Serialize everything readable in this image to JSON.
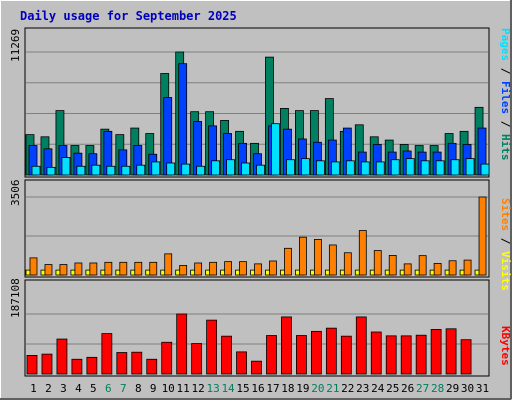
{
  "title": "Daily usage for September 2025",
  "colors": {
    "background": "#c0c0c0",
    "title": "#0000c0",
    "hits": "#008060",
    "files": "#0040ff",
    "pages": "#00e0ff",
    "visits": "#ffff00",
    "sites": "#ff8000",
    "kbytes": "#ff0000",
    "weekend_label": "#00805c"
  },
  "chart_data": [
    {
      "type": "bar",
      "panel": "hits-files-pages",
      "categories": [
        "1",
        "2",
        "3",
        "4",
        "5",
        "6",
        "7",
        "8",
        "9",
        "10",
        "11",
        "12",
        "13",
        "14",
        "15",
        "16",
        "17",
        "18",
        "19",
        "20",
        "21",
        "22",
        "23",
        "24",
        "25",
        "26",
        "27",
        "28",
        "29",
        "30",
        "31"
      ],
      "weekend_days": [
        "6",
        "7",
        "13",
        "14",
        "20",
        "21",
        "27",
        "28"
      ],
      "ymax_label": "11269",
      "ymax": 11269,
      "right_label_parts": [
        {
          "text": "Pages",
          "color_key": "pages"
        },
        {
          "text": " / ",
          "color_key": "divider"
        },
        {
          "text": "Files",
          "color_key": "files"
        },
        {
          "text": " / ",
          "color_key": "divider"
        },
        {
          "text": "Hits",
          "color_key": "hits"
        }
      ],
      "series": [
        {
          "key": "hits",
          "values": [
            3700,
            3500,
            5900,
            2700,
            2700,
            4200,
            3700,
            4300,
            3800,
            9300,
            11269,
            5800,
            5800,
            5000,
            4000,
            2900,
            10800,
            6100,
            5900,
            5900,
            7000,
            4000,
            4600,
            3500,
            3200,
            2800,
            2700,
            2700,
            3800,
            4000,
            6200
          ]
        },
        {
          "key": "files",
          "values": [
            2700,
            2400,
            2700,
            2000,
            1950,
            4000,
            2300,
            2700,
            1900,
            7100,
            10200,
            4900,
            4500,
            3800,
            2900,
            1950,
            4500,
            4200,
            3300,
            3000,
            3200,
            4300,
            2100,
            2800,
            2100,
            2200,
            2100,
            2100,
            2900,
            2800,
            4300
          ]
        },
        {
          "key": "pages",
          "values": [
            800,
            700,
            1600,
            800,
            900,
            800,
            800,
            900,
            1200,
            1100,
            1000,
            800,
            1300,
            1400,
            1100,
            900,
            4700,
            1400,
            1500,
            1300,
            1200,
            1300,
            1200,
            1200,
            1400,
            1500,
            1300,
            1300,
            1400,
            1500,
            1000
          ]
        }
      ]
    },
    {
      "type": "bar",
      "panel": "sites-visits",
      "categories": [
        "1",
        "2",
        "3",
        "4",
        "5",
        "6",
        "7",
        "8",
        "9",
        "10",
        "11",
        "12",
        "13",
        "14",
        "15",
        "16",
        "17",
        "18",
        "19",
        "20",
        "21",
        "22",
        "23",
        "24",
        "25",
        "26",
        "27",
        "28",
        "29",
        "30",
        "31"
      ],
      "ymax_label": "3506",
      "ymax": 3506,
      "right_label_parts": [
        {
          "text": "Sites",
          "color_key": "sites"
        },
        {
          "text": " / ",
          "color_key": "divider"
        },
        {
          "text": "Visits",
          "color_key": "visits"
        }
      ],
      "series": [
        {
          "key": "sites",
          "values": [
            770,
            470,
            470,
            540,
            540,
            570,
            570,
            570,
            570,
            950,
            430,
            540,
            570,
            600,
            600,
            500,
            630,
            1200,
            1700,
            1600,
            1350,
            1000,
            2000,
            1100,
            880,
            500,
            870,
            520,
            640,
            670,
            3506
          ]
        },
        {
          "key": "visits",
          "values": [
            220,
            220,
            220,
            220,
            220,
            220,
            220,
            220,
            220,
            220,
            220,
            220,
            220,
            220,
            220,
            220,
            220,
            220,
            220,
            220,
            220,
            220,
            220,
            220,
            220,
            220,
            220,
            220,
            220,
            220,
            220
          ]
        }
      ]
    },
    {
      "type": "bar",
      "panel": "kbytes",
      "categories": [
        "1",
        "2",
        "3",
        "4",
        "5",
        "6",
        "7",
        "8",
        "9",
        "10",
        "11",
        "12",
        "13",
        "14",
        "15",
        "16",
        "17",
        "18",
        "19",
        "20",
        "21",
        "22",
        "23",
        "24",
        "25",
        "26",
        "27",
        "28",
        "29",
        "30",
        "31"
      ],
      "ymax_label": "187108",
      "ymax": 187108,
      "right_label_parts": [
        {
          "text": "KBytes",
          "color_key": "kbytes"
        }
      ],
      "series": [
        {
          "key": "kbytes",
          "values": [
            58000,
            62000,
            109000,
            46000,
            52000,
            126000,
            67000,
            68000,
            46000,
            99000,
            187108,
            95000,
            168000,
            118000,
            69000,
            40000,
            120000,
            178000,
            120000,
            133000,
            143000,
            118000,
            178000,
            131000,
            119000,
            119000,
            121000,
            139000,
            141000,
            107000,
            null
          ]
        }
      ]
    }
  ]
}
